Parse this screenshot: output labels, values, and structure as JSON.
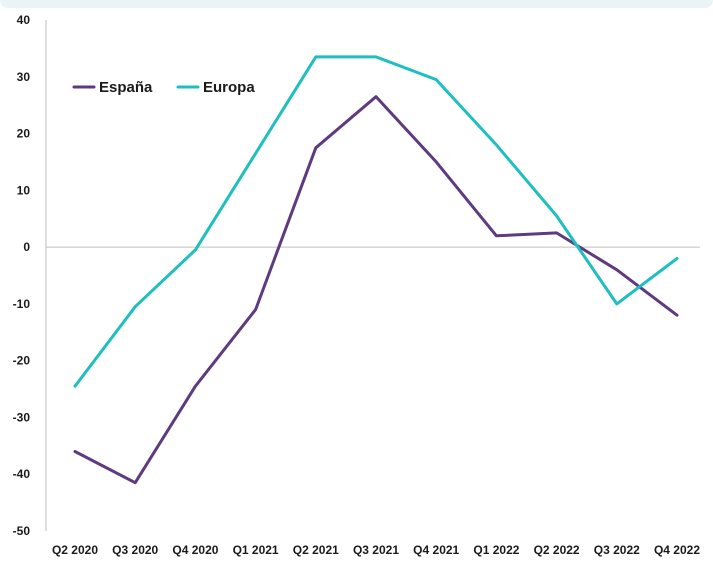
{
  "chart_data": {
    "type": "line",
    "title": "",
    "xlabel": "",
    "ylabel": "",
    "categories": [
      "Q2 2020",
      "Q3 2020",
      "Q4 2020",
      "Q1 2021",
      "Q2 2021",
      "Q3 2021",
      "Q4 2021",
      "Q1 2022",
      "Q2 2022",
      "Q3 2022",
      "Q4 2022"
    ],
    "ylim": [
      -50,
      40
    ],
    "yticks": [
      40,
      30,
      20,
      10,
      0,
      -10,
      -20,
      -30,
      -40,
      -50
    ],
    "yticks_labels": [
      "40",
      "30",
      "20",
      "10",
      "0",
      "-10",
      "-20",
      "-30",
      "-40",
      "-50"
    ],
    "grid": false,
    "zero_line": true,
    "legend_position": "top-left",
    "series": [
      {
        "name": "España",
        "color": "#5e3a7e",
        "values": [
          -36,
          -41.5,
          -24.5,
          -11,
          17.5,
          26.5,
          15,
          2,
          2.5,
          -4,
          -12
        ]
      },
      {
        "name": "Europa",
        "color": "#1fbfbf",
        "values": [
          -24.5,
          -10.5,
          -0.5,
          16.5,
          33.5,
          33.5,
          29.5,
          18,
          5.5,
          -10,
          -2
        ]
      }
    ]
  }
}
